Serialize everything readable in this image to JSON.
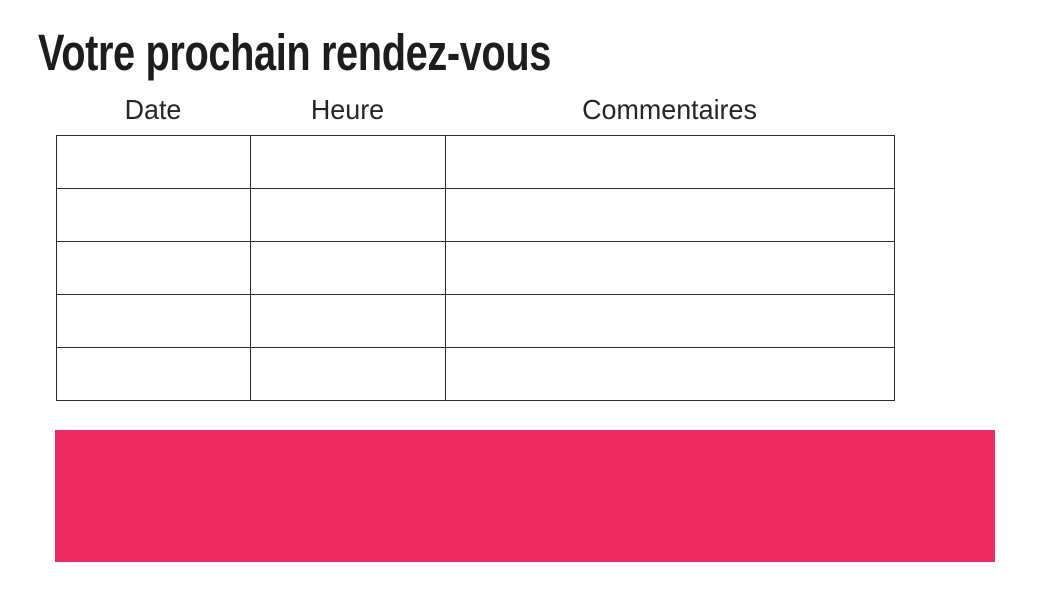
{
  "page": {
    "title": "Votre prochain rendez-vous"
  },
  "table": {
    "headers": [
      "Date",
      "Heure",
      "Commentaires"
    ],
    "rows": [
      [
        "",
        "",
        ""
      ],
      [
        "",
        "",
        ""
      ],
      [
        "",
        "",
        ""
      ],
      [
        "",
        "",
        ""
      ],
      [
        "",
        "",
        ""
      ]
    ]
  },
  "banner": {
    "text": "",
    "color": "#EE2A63"
  },
  "colors": {
    "text": "#1D1D1B",
    "table_border": "#2B2B2B",
    "background": "#FFFFFF"
  }
}
